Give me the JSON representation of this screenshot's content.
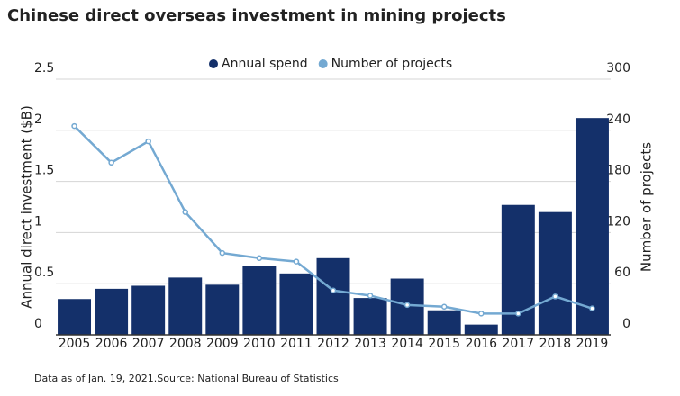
{
  "chart_data": {
    "type": "bar-line",
    "title": "Chinese direct overseas investment in mining projects",
    "y_label": "Annual direct investment ($B)",
    "y2_label": "Number of projects",
    "source": "Data as of Jan. 19, 2021.Source: National Bureau of Statistics",
    "categories": [
      "2005",
      "2006",
      "2007",
      "2008",
      "2009",
      "2010",
      "2011",
      "2012",
      "2013",
      "2014",
      "2015",
      "2016",
      "2017",
      "2018",
      "2019"
    ],
    "series": [
      {
        "name": "Annual spend",
        "type": "bar",
        "color": "#14306a",
        "values": [
          0.35,
          0.45,
          0.48,
          0.56,
          0.49,
          0.67,
          0.6,
          0.75,
          0.36,
          0.55,
          0.24,
          0.1,
          1.27,
          1.2,
          2.12
        ]
      },
      {
        "name": "Number of projects",
        "type": "line",
        "axis": "y2",
        "color": "#74a9d2",
        "values": [
          245,
          202,
          227,
          144,
          96,
          90,
          86,
          52,
          46,
          35,
          33,
          25,
          25,
          45,
          31
        ]
      }
    ],
    "ylim": [
      0,
      2.5
    ],
    "yticks": [
      0,
      0.5,
      1,
      1.5,
      2,
      2.5
    ],
    "y2lim": [
      0,
      300
    ],
    "y2ticks": [
      0,
      60,
      120,
      180,
      240,
      300
    ],
    "grid": true,
    "legend": "top"
  }
}
